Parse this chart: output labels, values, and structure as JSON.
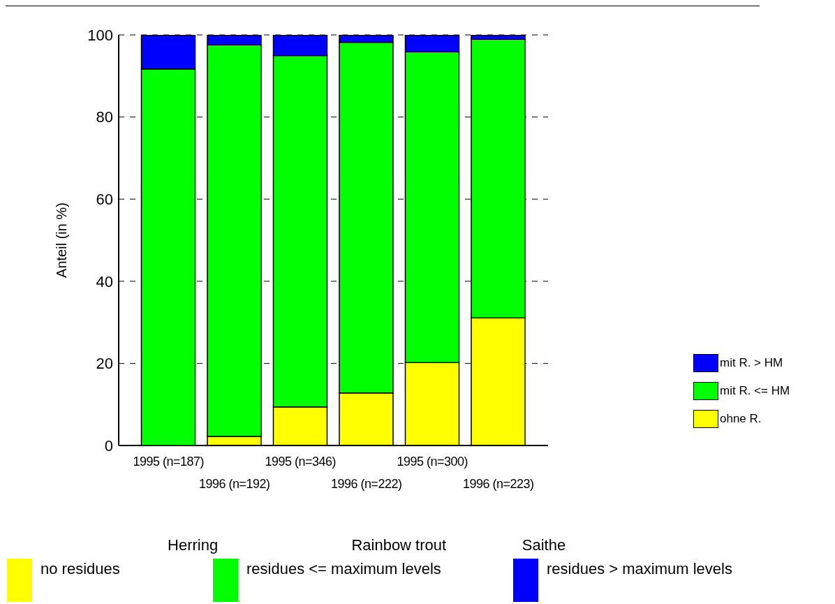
{
  "chart_data": {
    "type": "bar",
    "stacked": true,
    "ylabel": "Anteil (in %)",
    "categories": [
      "1995 (n=187)",
      "1996 (n=192)",
      "1995 (n=346)",
      "1996 (n=222)",
      "1995 (n=300)",
      "1996 (n=223)"
    ],
    "series": [
      {
        "name": "ohne R.",
        "color": "#ffff00",
        "values": [
          null,
          2.2,
          9.4,
          12.8,
          20.2,
          31.1
        ]
      },
      {
        "name": "mit R. <= HM",
        "color": "#00ff00",
        "values": [
          91.7,
          95.4,
          85.6,
          85.4,
          75.7,
          67.9
        ]
      },
      {
        "name": "mit R. > HM",
        "color": "#0000ff",
        "values": [
          8.3,
          2.4,
          5.0,
          1.8,
          4.1,
          1.0
        ]
      }
    ],
    "ylim": [
      0,
      100
    ],
    "yticks": [
      0,
      20,
      40,
      60,
      80,
      100
    ],
    "grid": "y",
    "legend": "right",
    "annotations": [
      "Herring",
      "Rainbow trout",
      "Saithe",
      "no residues",
      "residues <= maximum levels",
      "residues > maximum levels"
    ]
  }
}
